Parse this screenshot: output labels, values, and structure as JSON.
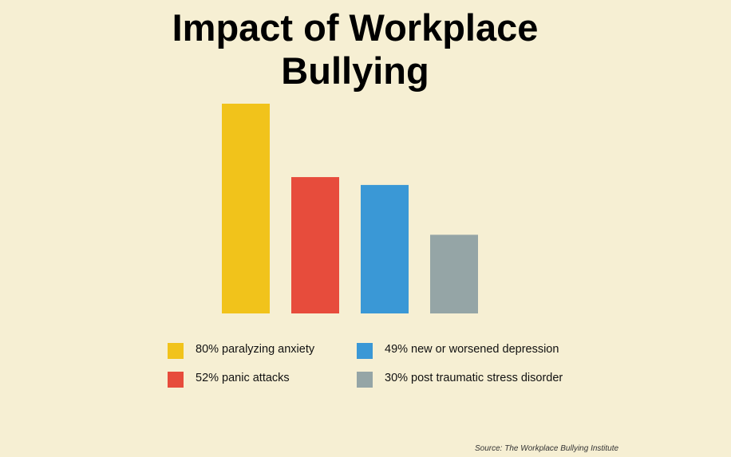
{
  "chart_data": {
    "type": "bar",
    "title": "Impact of Workplace Bullying",
    "categories": [
      "80% paralyzing anxiety",
      "52% panic attacks",
      "49% new or worsened depression",
      "30% post traumatic stress disorder"
    ],
    "values": [
      80,
      52,
      49,
      30
    ],
    "colors": [
      "#f1c31b",
      "#e74c3c",
      "#3a98d6",
      "#95a5a6"
    ],
    "source": "Source: The Workplace Bullying Institute"
  }
}
